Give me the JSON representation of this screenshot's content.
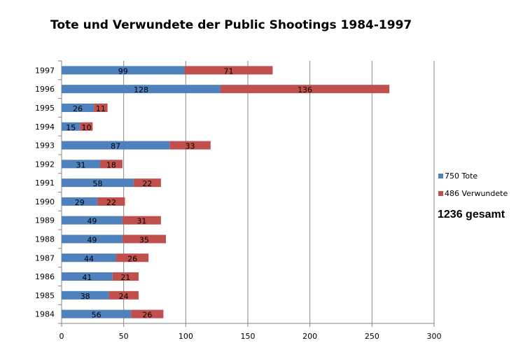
{
  "chart_data": {
    "type": "bar",
    "orientation": "horizontal",
    "stacked": true,
    "title": "Tote und Verwundete der  Public Shootings 1984-1997",
    "categories": [
      "1997",
      "1996",
      "1995",
      "1994",
      "1993",
      "1992",
      "1991",
      "1990",
      "1989",
      "1988",
      "1987",
      "1986",
      "1985",
      "1984"
    ],
    "series": [
      {
        "name": "750 Tote",
        "color": "#4F81BD",
        "values": [
          99,
          128,
          26,
          15,
          87,
          31,
          58,
          29,
          49,
          49,
          44,
          41,
          38,
          56
        ]
      },
      {
        "name": "486 Verwundete",
        "color": "#C0504D",
        "values": [
          71,
          136,
          11,
          10,
          33,
          18,
          22,
          22,
          31,
          35,
          26,
          21,
          24,
          26
        ]
      }
    ],
    "xlim": [
      0,
      300
    ],
    "xticks": [
      "0",
      "50",
      "100",
      "150",
      "200",
      "250",
      "300"
    ],
    "grid": true,
    "legend_position": "right",
    "annotation": "1236 gesamt"
  }
}
